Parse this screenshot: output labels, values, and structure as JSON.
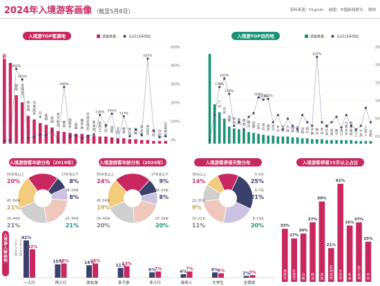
{
  "header": {
    "title": "2024年入境游客画像",
    "subtitle": "（截至5月8日）",
    "source": "资料来源：FlightAI",
    "producer": "制图：中国新闻周刊",
    "author": "顾帅"
  },
  "colors": {
    "pink": "#c8285f",
    "teal": "#1a9276",
    "navy": "#3b3f6b",
    "peach": "#f0c7bd",
    "lavender": "#ccc3e3",
    "gold": "#f2cc7a",
    "gray": "#cfcfcf"
  },
  "chart_data": [
    {
      "type": "bar",
      "title": "入境游TOP客源地",
      "legend": [
        "游客数量",
        "与2019年同比"
      ],
      "categories": [
        "中国香港",
        "中国台湾",
        "韩国",
        "中国澳门",
        "新加坡",
        "马来西亚",
        "日本",
        "泰国",
        "美国",
        "澳大利亚",
        "越南",
        "加拿大",
        "英国",
        "俄罗斯",
        "印度尼西亚",
        "菲律宾",
        "新西兰",
        "老挝",
        "德国",
        "法国",
        "缅甸",
        "荷兰",
        "瑞典",
        "意大利",
        "西班牙",
        "西班",
        "印度",
        "巴基斯坦"
      ],
      "values": [
        100,
        90,
        54,
        46,
        31,
        27,
        23,
        21,
        18,
        14,
        13,
        12,
        11,
        11,
        10,
        9,
        8,
        8,
        7,
        6,
        6,
        5,
        5,
        4,
        4,
        3,
        3,
        3
      ],
      "yoy": [
        -5,
        -2,
        382,
        325,
        10,
        15,
        30,
        25,
        50,
        -5,
        285,
        20,
        25,
        10,
        20,
        30,
        135,
        80,
        141,
        -10,
        127,
        20,
        55,
        25,
        437,
        50,
        15,
        20
      ],
      "yoy_labels": {
        "2": "382%",
        "3": "325%",
        "10": "285%",
        "16": "135%",
        "18": "141%",
        "20": "127%",
        "24": "437%"
      },
      "y2_ticks": [
        "500%",
        "400%",
        "300%",
        "200%",
        "100%",
        "0%"
      ],
      "y2lim": [
        -20,
        500
      ]
    },
    {
      "type": "bar",
      "title": "入境游TOP目的地",
      "legend": [
        "游客数量",
        "与2019年同比"
      ],
      "categories": [
        "上海",
        "深圳",
        "广州",
        "北京",
        "成都",
        "杭州",
        "厦门",
        "西安",
        "重庆",
        "昆明",
        "三亚",
        "青岛",
        "南京",
        "武汉",
        "长沙",
        "天津",
        "大连",
        "桂林",
        "珠海",
        "沈阳",
        "郑州",
        "济南",
        "福州",
        "苏州",
        "哈尔滨",
        "贵阳",
        "南宁",
        "海口",
        "乌鲁木齐",
        "西双版纳",
        "丽江",
        "宁波",
        "三亚2",
        "合肥"
      ],
      "values": [
        100,
        44,
        35,
        28,
        19,
        17,
        16,
        15,
        13,
        12,
        11,
        10,
        9,
        9,
        8,
        8,
        8,
        7,
        7,
        6,
        6,
        5,
        5,
        5,
        4,
        4,
        4,
        4,
        4,
        4,
        3,
        3,
        3,
        3
      ],
      "yoy": [
        -10,
        60,
        138,
        162,
        119,
        30,
        40,
        20,
        55,
        65,
        109,
        103,
        105,
        40,
        60,
        20,
        50,
        30,
        20,
        60,
        40,
        30,
        222,
        40,
        30,
        40,
        55,
        25,
        60,
        30,
        20,
        30,
        80,
        40
      ],
      "yoy_labels": {
        "2": "138%",
        "3": "162%",
        "4": "119%",
        "10": "109%",
        "11": "103%",
        "12": "105%",
        "22": "222%"
      },
      "y2_ticks": [
        "250%",
        "200%",
        "150%",
        "100%",
        "50%",
        "0%"
      ],
      "y2lim": [
        -20,
        250
      ]
    },
    {
      "type": "pie",
      "title": "入境游旅客年龄分布（2019年）",
      "slices": [
        {
          "label": "55岁及以上",
          "value": 20,
          "color": "#c8285f"
        },
        {
          "label": "17岁及以下",
          "value": 8,
          "color": "#3b3f6b"
        },
        {
          "label": "18–24岁",
          "value": 8,
          "color": "#ccc3e3"
        },
        {
          "label": "25–34岁",
          "value": 21,
          "color": "#f0c7bd"
        },
        {
          "label": "35–44岁",
          "value": 21,
          "color": "#cfcfcf"
        },
        {
          "label": "45–54岁",
          "value": 21,
          "color": "#f2cc7a"
        }
      ],
      "labels": [
        {
          "name": "55岁及以上",
          "pct": "20%"
        },
        {
          "name": "17岁及以下",
          "pct": "8%"
        },
        {
          "name": "18–24岁",
          "pct": "8%"
        },
        {
          "name": "25–34岁",
          "pct": "21%"
        },
        {
          "name": "35–44岁",
          "pct": "21%"
        },
        {
          "name": "45–54岁",
          "pct": "21%"
        }
      ]
    },
    {
      "type": "pie",
      "title": "入境游旅客年龄分布（2024年）",
      "slices": [
        {
          "label": "55岁及以上",
          "value": 24,
          "color": "#c8285f"
        },
        {
          "label": "17岁及以下",
          "value": 9,
          "color": "#3b3f6b"
        },
        {
          "label": "18–24岁",
          "value": 8,
          "color": "#ccc3e3"
        },
        {
          "label": "25–34岁",
          "value": 20,
          "color": "#f0c7bd"
        },
        {
          "label": "35–44岁",
          "value": 20,
          "color": "#cfcfcf"
        },
        {
          "label": "45–54岁",
          "value": 19,
          "color": "#f2cc7a"
        }
      ],
      "labels": [
        {
          "name": "55岁及以上",
          "pct": "24%"
        },
        {
          "name": "17岁及以下",
          "pct": "9%"
        },
        {
          "name": "18–24岁",
          "pct": "8%"
        },
        {
          "name": "25–34岁",
          "pct": "20%"
        },
        {
          "name": "35–44岁",
          "pct": "20%"
        },
        {
          "name": "45–54岁",
          "pct": "19%"
        }
      ]
    },
    {
      "type": "pie",
      "title": "入境游客停留天数分布",
      "slices": [
        {
          "label": "30天以上",
          "value": 14,
          "color": "#c8285f"
        },
        {
          "label": "0–3天",
          "value": 25,
          "color": "#3b3f6b"
        },
        {
          "label": "4–7天",
          "value": 21,
          "color": "#ccc3e3"
        },
        {
          "label": "8–14天",
          "value": 20,
          "color": "#f0c7bd"
        },
        {
          "label": "15–21天",
          "value": 11,
          "color": "#cfcfcf"
        },
        {
          "label": "22–30天",
          "value": 9,
          "color": "#f2cc7a"
        }
      ],
      "labels": [
        {
          "name": "30天以上",
          "pct": "14%"
        },
        {
          "name": "0–3天",
          "pct": "25%"
        },
        {
          "name": "4–7天",
          "pct": "21%"
        },
        {
          "name": "8–14天",
          "pct": "20%"
        },
        {
          "name": "15–21天",
          "pct": "11%"
        },
        {
          "name": "22–30天",
          "pct": "9%"
        }
      ]
    },
    {
      "type": "bar",
      "title": "入境游客停留15天以上占比",
      "categories": [
        "港澳台",
        "东南亚",
        "日韩",
        "欧洲",
        "美加",
        "亚洲其他",
        "大洋洲",
        "非洲",
        "拉丁美洲",
        "中东"
      ],
      "values": [
        33,
        27,
        30,
        37,
        50,
        21,
        61,
        35,
        37,
        25
      ],
      "value_labels": [
        "33%",
        "27%",
        "30%",
        "37%",
        "50%",
        "21%",
        "61%",
        "35%",
        "37%",
        "25%"
      ]
    },
    {
      "type": "bar",
      "title": "入境游入群结构",
      "legend": [
        "2019年",
        "2024年"
      ],
      "categories": [
        "一人行",
        "两人行",
        "朋友游",
        "亲子游",
        "多人行",
        "商务人",
        "大学生",
        "全家游"
      ],
      "series": [
        {
          "name": "2019年",
          "values": [
            42,
            15,
            14,
            11,
            6,
            4,
            6,
            2
          ],
          "labels": [
            "42%",
            "15%",
            "14%",
            "11%",
            "6%",
            "4%",
            "6%",
            "2%"
          ]
        },
        {
          "name": "2024年",
          "values": [
            32,
            16,
            16,
            13,
            7,
            7,
            5,
            3
          ],
          "labels": [
            "32%",
            "16%",
            "16%",
            "13%",
            "7%",
            "7%",
            "5%",
            "3%"
          ]
        }
      ]
    }
  ]
}
